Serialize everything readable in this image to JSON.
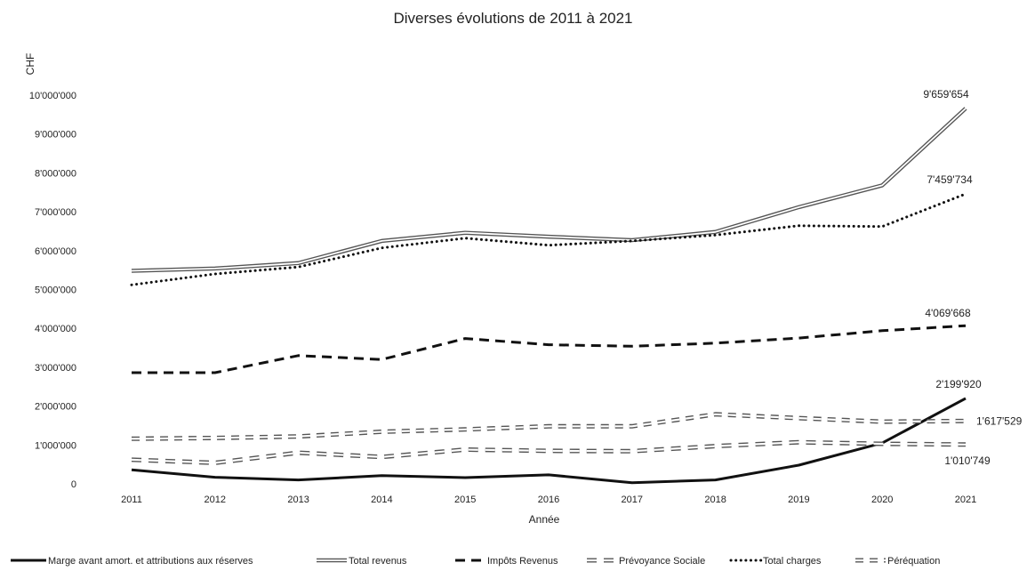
{
  "chart_data": {
    "type": "line",
    "title": "Diverses évolutions de 2011 à 2021",
    "xlabel": "Année",
    "ylabel": "CHF",
    "ylim": [
      0,
      10000000
    ],
    "yticks": [
      0,
      1000000,
      2000000,
      3000000,
      4000000,
      5000000,
      6000000,
      7000000,
      8000000,
      9000000,
      10000000
    ],
    "ytick_labels": [
      "0",
      "1'000'000",
      "2'000'000",
      "3'000'000",
      "4'000'000",
      "5'000'000",
      "6'000'000",
      "7'000'000",
      "8'000'000",
      "9'000'000",
      "10'000'000"
    ],
    "categories": [
      "2011",
      "2012",
      "2013",
      "2014",
      "2015",
      "2016",
      "2017",
      "2018",
      "2019",
      "2020",
      "2021"
    ],
    "grid": false,
    "legend_position": "bottom",
    "series": [
      {
        "name": "Marge avant amort. et attributions aux réserves",
        "style": "solid",
        "color": "#111111",
        "values": [
          360000,
          170000,
          100000,
          210000,
          160000,
          230000,
          30000,
          100000,
          480000,
          1050000,
          2199920
        ],
        "end_label": "2'199'920"
      },
      {
        "name": "Total revenus",
        "style": "double",
        "color": "#555555",
        "values": [
          5480000,
          5540000,
          5680000,
          6250000,
          6460000,
          6360000,
          6270000,
          6480000,
          7120000,
          7680000,
          9659654
        ],
        "end_label": "9'659'654"
      },
      {
        "name": "Impôts Revenus",
        "style": "dashed",
        "color": "#111111",
        "values": [
          2860000,
          2860000,
          3300000,
          3200000,
          3740000,
          3580000,
          3540000,
          3620000,
          3750000,
          3940000,
          4069668
        ],
        "end_label": "4'069'668"
      },
      {
        "name": "Prévoyance Sociale",
        "style": "hollow-dashed",
        "color": "#555555",
        "values": [
          620000,
          540000,
          800000,
          690000,
          880000,
          850000,
          840000,
          970000,
          1070000,
          1030000,
          1010749
        ],
        "end_label": "1'010'749"
      },
      {
        "name": "Total charges",
        "style": "dotted",
        "color": "#111111",
        "values": [
          5120000,
          5400000,
          5580000,
          6070000,
          6320000,
          6140000,
          6250000,
          6400000,
          6640000,
          6620000,
          7459734
        ],
        "end_label": "7'459'734"
      },
      {
        "name": "Péréquation",
        "style": "hollow-dashed-short",
        "color": "#555555",
        "values": [
          1160000,
          1180000,
          1220000,
          1340000,
          1400000,
          1480000,
          1480000,
          1790000,
          1690000,
          1600000,
          1617529
        ],
        "end_label": "1'617'529"
      }
    ]
  }
}
